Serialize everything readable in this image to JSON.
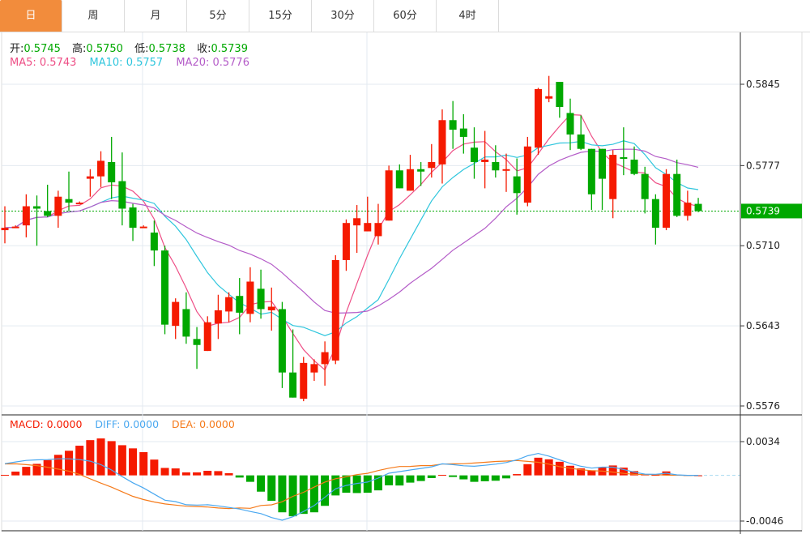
{
  "tabs": [
    {
      "label": "日",
      "active": true
    },
    {
      "label": "周",
      "active": false
    },
    {
      "label": "月",
      "active": false
    },
    {
      "label": "5分",
      "active": false
    },
    {
      "label": "15分",
      "active": false
    },
    {
      "label": "30分",
      "active": false
    },
    {
      "label": "60分",
      "active": false
    },
    {
      "label": "4时",
      "active": false
    }
  ],
  "ohlc_legend": {
    "open_label": "开:",
    "open": "0.5745",
    "high_label": "高:",
    "high": "0.5750",
    "low_label": "低:",
    "low": "0.5738",
    "close_label": "收:",
    "close": "0.5739"
  },
  "ma_legend": {
    "ma5": "MA5: 0.5743",
    "ma10": "MA10: 0.5757",
    "ma20": "MA20: 0.5776"
  },
  "macd_legend": {
    "macd": "MACD: 0.0000",
    "diff": "DIFF: 0.0000",
    "dea": "DEA: 0.0000"
  },
  "colors": {
    "up": "#f51a00",
    "down": "#00a800",
    "ma5": "#ee4f86",
    "ma10": "#2fc6dd",
    "ma20": "#b45cc8",
    "diff": "#4aa8f0",
    "dea": "#f57a1a",
    "active_tab": "#f28c3c"
  },
  "chart_data": [
    {
      "type": "candlestick",
      "y_ticks": [
        "0.5845",
        "0.5777",
        "0.5710",
        "0.5643",
        "0.5576"
      ],
      "ylim": [
        0.5576,
        0.5845
      ],
      "last_price": "0.5739",
      "ma_periods": [
        5,
        10,
        20
      ],
      "candles_ohlc": [
        [
          0.5723,
          0.5743,
          0.5712,
          0.5725
        ],
        [
          0.5726,
          0.5727,
          0.5726,
          0.5726
        ],
        [
          0.5727,
          0.5753,
          0.5717,
          0.5743
        ],
        [
          0.5743,
          0.5752,
          0.571,
          0.5741
        ],
        [
          0.5739,
          0.5761,
          0.5734,
          0.5735
        ],
        [
          0.5735,
          0.5756,
          0.5725,
          0.5751
        ],
        [
          0.5749,
          0.5772,
          0.5739,
          0.5746
        ],
        [
          0.5746,
          0.5747,
          0.5746,
          0.5746
        ],
        [
          0.5766,
          0.5774,
          0.5751,
          0.5768
        ],
        [
          0.5768,
          0.5789,
          0.5759,
          0.5781
        ],
        [
          0.578,
          0.5801,
          0.5749,
          0.5763
        ],
        [
          0.5764,
          0.5788,
          0.5727,
          0.5741
        ],
        [
          0.5742,
          0.5745,
          0.5714,
          0.5725
        ],
        [
          0.5726,
          0.5727,
          0.5726,
          0.5726
        ],
        [
          0.5721,
          0.5731,
          0.5693,
          0.5706
        ],
        [
          0.5706,
          0.571,
          0.5636,
          0.5644
        ],
        [
          0.5643,
          0.5666,
          0.5632,
          0.5663
        ],
        [
          0.5657,
          0.5671,
          0.5628,
          0.5634
        ],
        [
          0.5632,
          0.5642,
          0.5607,
          0.5627
        ],
        [
          0.5622,
          0.5651,
          0.5622,
          0.5646
        ],
        [
          0.5645,
          0.5669,
          0.5632,
          0.5656
        ],
        [
          0.5655,
          0.5671,
          0.5646,
          0.5667
        ],
        [
          0.5668,
          0.5683,
          0.5636,
          0.5654
        ],
        [
          0.5653,
          0.5692,
          0.5646,
          0.568
        ],
        [
          0.5674,
          0.569,
          0.5649,
          0.5657
        ],
        [
          0.5656,
          0.5675,
          0.5639,
          0.5659
        ],
        [
          0.5657,
          0.5663,
          0.5591,
          0.5604
        ],
        [
          0.5604,
          0.564,
          0.5583,
          0.5583
        ],
        [
          0.5582,
          0.5617,
          0.558,
          0.5612
        ],
        [
          0.5604,
          0.5615,
          0.5597,
          0.5611
        ],
        [
          0.5611,
          0.563,
          0.5593,
          0.5621
        ],
        [
          0.5614,
          0.5702,
          0.5611,
          0.5698
        ],
        [
          0.5698,
          0.5732,
          0.5689,
          0.5729
        ],
        [
          0.5727,
          0.5744,
          0.5704,
          0.5733
        ],
        [
          0.5722,
          0.5751,
          0.5722,
          0.5729
        ],
        [
          0.5718,
          0.5745,
          0.5711,
          0.5729
        ],
        [
          0.5731,
          0.5777,
          0.5731,
          0.5773
        ],
        [
          0.5773,
          0.5778,
          0.5758,
          0.5758
        ],
        [
          0.5756,
          0.5786,
          0.5756,
          0.5774
        ],
        [
          0.5774,
          0.578,
          0.576,
          0.5772
        ],
        [
          0.5775,
          0.5795,
          0.5767,
          0.578
        ],
        [
          0.5778,
          0.5824,
          0.5762,
          0.5815
        ],
        [
          0.5815,
          0.5831,
          0.5791,
          0.5807
        ],
        [
          0.5808,
          0.582,
          0.5787,
          0.5801
        ],
        [
          0.5792,
          0.5809,
          0.5766,
          0.578
        ],
        [
          0.578,
          0.5806,
          0.5758,
          0.5782
        ],
        [
          0.578,
          0.5794,
          0.5767,
          0.5773
        ],
        [
          0.5773,
          0.5787,
          0.5755,
          0.5774
        ],
        [
          0.5768,
          0.5783,
          0.5736,
          0.5754
        ],
        [
          0.5746,
          0.5801,
          0.5743,
          0.5793
        ],
        [
          0.5792,
          0.5842,
          0.5786,
          0.5841
        ],
        [
          0.5833,
          0.5852,
          0.583,
          0.5835
        ],
        [
          0.5847,
          0.5847,
          0.5817,
          0.5826
        ],
        [
          0.5821,
          0.5833,
          0.579,
          0.5803
        ],
        [
          0.5803,
          0.5819,
          0.579,
          0.5791
        ],
        [
          0.5791,
          0.5791,
          0.574,
          0.5753
        ],
        [
          0.5791,
          0.5791,
          0.574,
          0.5766
        ],
        [
          0.5749,
          0.579,
          0.5733,
          0.5786
        ],
        [
          0.5784,
          0.5809,
          0.5769,
          0.5783
        ],
        [
          0.5782,
          0.5793,
          0.5769,
          0.577
        ],
        [
          0.577,
          0.5776,
          0.5737,
          0.5749
        ],
        [
          0.5749,
          0.5753,
          0.5711,
          0.5725
        ],
        [
          0.5725,
          0.5774,
          0.5723,
          0.577
        ],
        [
          0.577,
          0.5782,
          0.5734,
          0.5735
        ],
        [
          0.5735,
          0.5756,
          0.5731,
          0.5746
        ],
        [
          0.5745,
          0.575,
          0.5738,
          0.5739
        ]
      ]
    },
    {
      "type": "bar",
      "y_ticks": [
        "0.0034",
        "-0.0046"
      ],
      "ylim": [
        -0.0046,
        0.0034
      ],
      "macd_hist": [
        5e-05,
        0.00038,
        0.00086,
        0.00116,
        0.00154,
        0.00207,
        0.00248,
        0.00299,
        0.00355,
        0.00372,
        0.00345,
        0.00304,
        0.00272,
        0.00234,
        0.00159,
        0.00075,
        0.0007,
        0.0003,
        0.0003,
        0.00046,
        0.00043,
        0.00022,
        -0.00022,
        -0.00065,
        -0.00164,
        -0.00256,
        -0.00372,
        -0.00412,
        -0.00388,
        -0.00372,
        -0.00307,
        -0.00202,
        -0.00175,
        -0.00178,
        -0.00175,
        -0.00151,
        -0.001,
        -0.00102,
        -0.00073,
        -0.00057,
        -0.00027,
        5e-05,
        -0.00016,
        -0.0004,
        -0.00065,
        -0.00059,
        -0.00054,
        -0.0003,
        0.00013,
        0.00113,
        0.00178,
        0.00162,
        0.00137,
        0.00097,
        0.0007,
        0.00051,
        0.00081,
        0.001,
        0.00078,
        0.00043,
        0.00011,
        5e-05,
        0.0004,
        5e-05,
        3e-05,
        0
      ],
      "diff": [
        0.00118,
        0.00135,
        0.00151,
        0.00156,
        0.00159,
        0.00167,
        0.00167,
        0.00159,
        0.00143,
        0.00108,
        0.00054,
        -0.00013,
        -0.00075,
        -0.00127,
        -0.00189,
        -0.0025,
        -0.00264,
        -0.00296,
        -0.00299,
        -0.00296,
        -0.00307,
        -0.00323,
        -0.00339,
        -0.00364,
        -0.00385,
        -0.00425,
        -0.00452,
        -0.00417,
        -0.00364,
        -0.00304,
        -0.00221,
        -0.00135,
        -0.00102,
        -0.00081,
        -0.00067,
        -0.00027,
        0.00022,
        0.00038,
        0.00054,
        0.0007,
        0.00086,
        0.00116,
        0.00108,
        0.00097,
        0.00092,
        0.00102,
        0.00113,
        0.00129,
        0.00156,
        0.00197,
        0.00221,
        0.00194,
        0.00156,
        0.00121,
        0.00092,
        0.00073,
        0.00083,
        0.00083,
        0.00059,
        0.00032,
        0.00013,
        0.00011,
        0.00022,
        5e-05,
        0,
        0
      ]
    }
  ]
}
